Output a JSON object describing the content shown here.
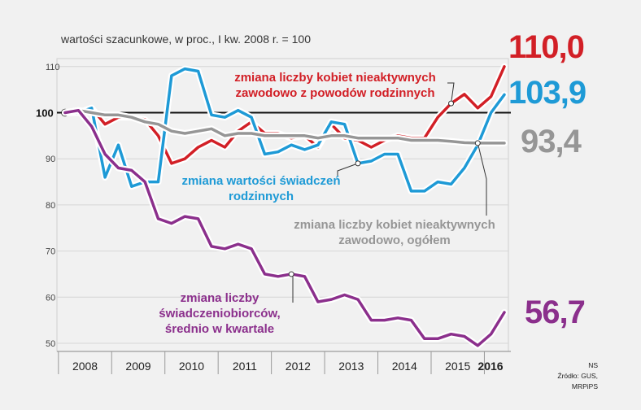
{
  "subtitle": "wartości szacunkowe, w proc., I kw. 2008 r. = 100",
  "colors": {
    "red": "#d21f26",
    "blue": "#1e9ad6",
    "gray": "#969696",
    "purple": "#8b2f8c",
    "background": "#f1f1f1"
  },
  "end_values": {
    "red": "110,0",
    "blue": "103,9",
    "gray": "93,4",
    "purple": "56,7"
  },
  "annotations": {
    "red": [
      "zmiana liczby kobiet nieaktywnych",
      "zawodowo z powodów rodzinnych"
    ],
    "blue": [
      "zmiana wartości świadczeń",
      "rodzinnych"
    ],
    "gray": [
      "zmiana liczby kobiet nieaktywnych",
      "zawodowo, ogółem"
    ],
    "purple": [
      "zmiana liczby",
      "świadczeniobiorców,",
      "średnio w kwartale"
    ]
  },
  "source": {
    "initials": "NS",
    "text": "Źródło: GUS, MRPiPS"
  },
  "chart_data": {
    "type": "line",
    "title": "",
    "xlabel": "",
    "ylabel": "",
    "ylim": [
      48,
      115
    ],
    "baseline": 100,
    "baseline_label": "100",
    "yticks": [
      50,
      60,
      70,
      80,
      90,
      110
    ],
    "years": [
      "2008",
      "2009",
      "2010",
      "2011",
      "2012",
      "2013",
      "2014",
      "2015",
      "2016"
    ],
    "highlight_year": "2016",
    "x": [
      "2008Q1",
      "2008Q2",
      "2008Q3",
      "2008Q4",
      "2009Q1",
      "2009Q2",
      "2009Q3",
      "2009Q4",
      "2010Q1",
      "2010Q2",
      "2010Q3",
      "2010Q4",
      "2011Q1",
      "2011Q2",
      "2011Q3",
      "2011Q4",
      "2012Q1",
      "2012Q2",
      "2012Q3",
      "2012Q4",
      "2013Q1",
      "2013Q2",
      "2013Q3",
      "2013Q4",
      "2014Q1",
      "2014Q2",
      "2014Q3",
      "2014Q4",
      "2015Q1",
      "2015Q2",
      "2015Q3",
      "2015Q4",
      "2016Q1",
      "2016Q2"
    ],
    "series": [
      {
        "name": "zmiana liczby kobiet nieaktywnych zawodowo z powodów rodzinnych",
        "color": "#d21f26",
        "values": [
          100,
          100,
          101,
          97.5,
          99,
          99,
          98.5,
          95,
          89,
          90,
          92.5,
          94,
          92.5,
          96,
          98,
          95.5,
          95.5,
          94.5,
          95,
          92.5,
          97.5,
          94.5,
          94,
          92.5,
          94,
          95,
          94.5,
          94.5,
          99,
          102,
          104,
          101,
          103.5,
          110
        ]
      },
      {
        "name": "zmiana wartości świadczeń rodzinnych",
        "color": "#1e9ad6",
        "values": [
          100,
          100,
          101,
          86,
          93,
          84,
          85,
          85,
          108,
          109.5,
          109,
          99.5,
          99,
          100.5,
          99,
          91,
          91.5,
          93,
          92,
          93,
          98,
          97.5,
          89,
          89.5,
          91,
          91,
          83,
          83,
          85,
          84.5,
          88,
          93,
          100,
          103.9
        ]
      },
      {
        "name": "zmiana liczby kobiet nieaktywnych zawodowo, ogółem",
        "color": "#969696",
        "values": [
          100,
          100.5,
          100,
          99.5,
          99.5,
          99,
          98,
          97.5,
          96,
          95.5,
          96,
          96.5,
          95,
          95.5,
          95.5,
          95,
          95,
          95,
          95,
          94.5,
          95,
          95,
          94.5,
          94.5,
          94.5,
          94.5,
          94,
          94,
          94,
          93.8,
          93.5,
          93.4,
          93.4,
          93.4
        ]
      },
      {
        "name": "zmiana liczby świadczeniobiorców, średnio w kwartale",
        "color": "#8b2f8c",
        "values": [
          100,
          100.5,
          97,
          91,
          88,
          87.5,
          85,
          77,
          76,
          77.5,
          77,
          71,
          70.5,
          71.5,
          70.5,
          65,
          64.5,
          65,
          64.5,
          59,
          59.5,
          60.5,
          59.5,
          55,
          55,
          55.5,
          55,
          51,
          51,
          52,
          51.5,
          49.5,
          52,
          56.7
        ]
      }
    ],
    "end_labels": [
      "110,0",
      "103,9",
      "93,4",
      "56,7"
    ]
  }
}
